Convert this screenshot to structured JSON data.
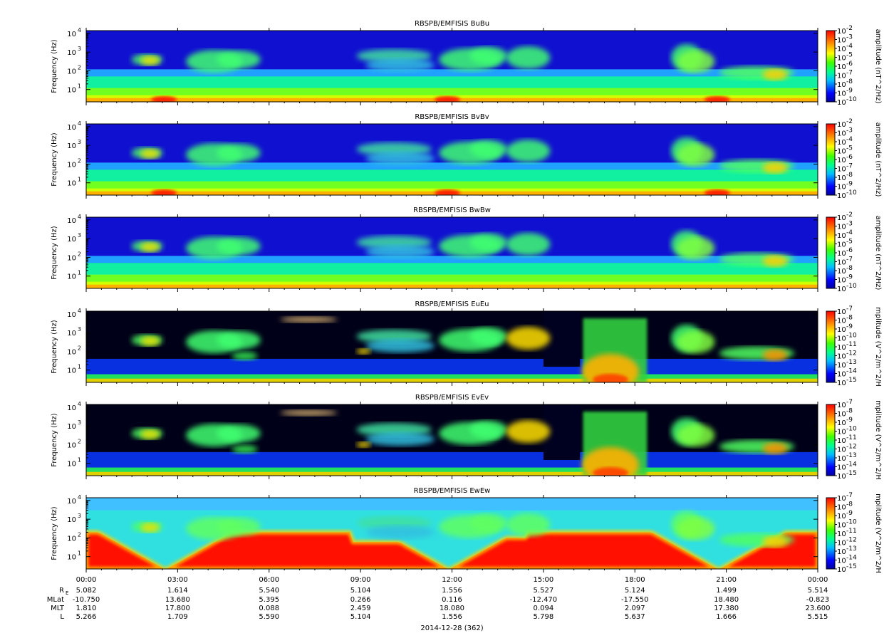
{
  "chart_data": {
    "type": "heatmap",
    "date_label": "2014-12-28 (362)",
    "x_tick_labels": [
      "00:00",
      "03:00",
      "06:00",
      "09:00",
      "12:00",
      "15:00",
      "18:00",
      "21:00",
      "00:00"
    ],
    "xlim": [
      "00:00",
      "24:00"
    ],
    "y_tick_labels": [
      "10",
      "10",
      "10",
      "10"
    ],
    "y_tick_exponents": [
      "1",
      "2",
      "3",
      "4"
    ],
    "panels": [
      {
        "title": "RBSPB/EMFISIS  BuBu",
        "ylabel": "Frequency (Hz)",
        "cblabel": "amplitude (nT^2/Hz)",
        "cb_ticks": [
          "-2",
          "-3",
          "-4",
          "-5",
          "-6",
          "-7",
          "-8",
          "-9",
          "-10"
        ],
        "kind": "B"
      },
      {
        "title": "RBSPB/EMFISIS  BvBv",
        "ylabel": "Frequency (Hz)",
        "cblabel": "amplitude (nT^2/Hz)",
        "cb_ticks": [
          "-2",
          "-3",
          "-4",
          "-5",
          "-6",
          "-7",
          "-8",
          "-9",
          "-10"
        ],
        "kind": "B"
      },
      {
        "title": "RBSPB/EMFISIS  BwBw",
        "ylabel": "Frequency (Hz)",
        "cblabel": "amplitude (nT^2/Hz)",
        "cb_ticks": [
          "-2",
          "-3",
          "-4",
          "-5",
          "-6",
          "-7",
          "-8",
          "-9",
          "-10"
        ],
        "kind": "B"
      },
      {
        "title": "RBSPB/EMFISIS  EuEu",
        "ylabel": "Frequency (Hz)",
        "cblabel": "mplitude (V^2/m^2/H",
        "cb_ticks": [
          "-7",
          "-8",
          "-9",
          "-10",
          "-11",
          "-12",
          "-13",
          "-14",
          "-15"
        ],
        "kind": "E"
      },
      {
        "title": "RBSPB/EMFISIS  EvEv",
        "ylabel": "Frequency (Hz)",
        "cblabel": "mplitude (V^2/m^2/H",
        "cb_ticks": [
          "-7",
          "-8",
          "-9",
          "-10",
          "-11",
          "-12",
          "-13",
          "-14",
          "-15"
        ],
        "kind": "E"
      },
      {
        "title": "RBSPB/EMFISIS  EwEw",
        "ylabel": "Frequency (Hz)",
        "cblabel": "mplitude (V^2/m^2/H",
        "cb_ticks": [
          "-7",
          "-8",
          "-9",
          "-10",
          "-11",
          "-12",
          "-13",
          "-14",
          "-15"
        ],
        "kind": "Ew"
      }
    ],
    "ephemeris": {
      "row_labels": [
        "R",
        "MLat",
        "MLT",
        "L"
      ],
      "re_subscript": "E",
      "rows": [
        [
          "5.082",
          "1.614",
          "5.540",
          "5.104",
          "1.556",
          "5.527",
          "5.124",
          "1.499",
          "5.514"
        ],
        [
          "-10.750",
          "13.680",
          "5.395",
          "0.266",
          "0.116",
          "-12.470",
          "-17.550",
          "18.480",
          "-0.823"
        ],
        [
          "1.810",
          "17.800",
          "0.088",
          "2.459",
          "18.080",
          "0.094",
          "2.097",
          "17.380",
          "23.600"
        ],
        [
          "5.266",
          "1.709",
          "5.590",
          "5.104",
          "1.556",
          "5.798",
          "5.637",
          "1.666",
          "5.515"
        ]
      ]
    }
  }
}
